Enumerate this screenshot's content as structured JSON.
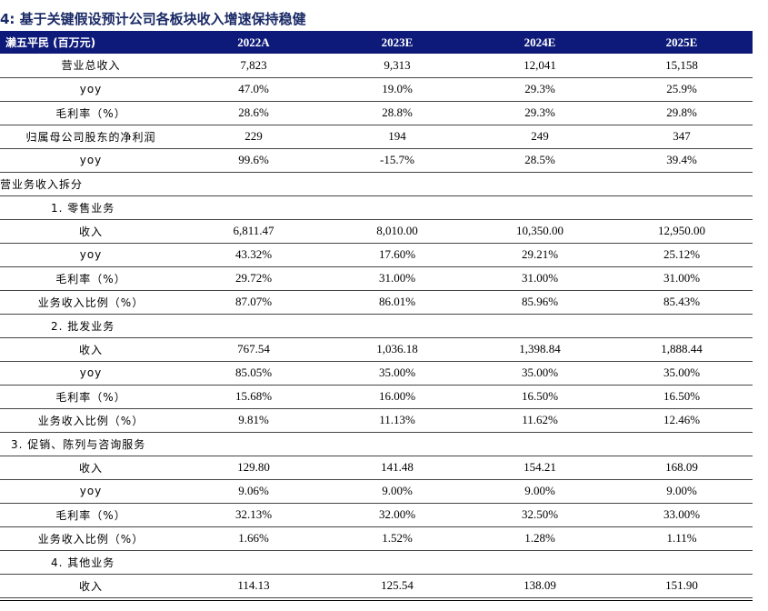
{
  "title": "4: 基于关键假设预计公司各板块收入增速保持稳健",
  "header": {
    "label": "濑五平民 (百万元)",
    "years": [
      "2022A",
      "2023E",
      "2024E",
      "2025E"
    ]
  },
  "rows": [
    {
      "label": "营业总收入",
      "values": [
        "7,823",
        "9,313",
        "12,041",
        "15,158"
      ]
    },
    {
      "label": "yoy",
      "values": [
        "47.0%",
        "19.0%",
        "29.3%",
        "25.9%"
      ]
    },
    {
      "label": "毛利率（%）",
      "values": [
        "28.6%",
        "28.8%",
        "29.3%",
        "29.8%"
      ]
    },
    {
      "label": "归属母公司股东的净利润",
      "values": [
        "229",
        "194",
        "249",
        "347"
      ]
    },
    {
      "label": "yoy",
      "values": [
        "99.6%",
        "-15.7%",
        "28.5%",
        "39.4%"
      ]
    },
    {
      "label": "营业务收入拆分",
      "values": [],
      "section": 0
    },
    {
      "label": "1. 零售业务",
      "values": [],
      "section": 1
    },
    {
      "label": "收入",
      "values": [
        "6,811.47",
        "8,010.00",
        "10,350.00",
        "12,950.00"
      ]
    },
    {
      "label": "yoy",
      "values": [
        "43.32%",
        "17.60%",
        "29.21%",
        "25.12%"
      ]
    },
    {
      "label": "毛利率（%）",
      "values": [
        "29.72%",
        "31.00%",
        "31.00%",
        "31.00%"
      ]
    },
    {
      "label": "业务收入比例（%）",
      "values": [
        "87.07%",
        "86.01%",
        "85.96%",
        "85.43%"
      ]
    },
    {
      "label": "2. 批发业务",
      "values": [],
      "section": 1
    },
    {
      "label": "收入",
      "values": [
        "767.54",
        "1,036.18",
        "1,398.84",
        "1,888.44"
      ]
    },
    {
      "label": "yoy",
      "values": [
        "85.05%",
        "35.00%",
        "35.00%",
        "35.00%"
      ]
    },
    {
      "label": "毛利率（%）",
      "values": [
        "15.68%",
        "16.00%",
        "16.50%",
        "16.50%"
      ]
    },
    {
      "label": "业务收入比例（%）",
      "values": [
        "9.81%",
        "11.13%",
        "11.62%",
        "12.46%"
      ]
    },
    {
      "label": "3. 促销、陈列与咨询服务",
      "values": [],
      "section": 2
    },
    {
      "label": "收入",
      "values": [
        "129.80",
        "141.48",
        "154.21",
        "168.09"
      ]
    },
    {
      "label": "yoy",
      "values": [
        "9.06%",
        "9.00%",
        "9.00%",
        "9.00%"
      ]
    },
    {
      "label": "毛利率（%）",
      "values": [
        "32.13%",
        "32.00%",
        "32.50%",
        "33.00%"
      ]
    },
    {
      "label": "业务收入比例（%）",
      "values": [
        "1.66%",
        "1.52%",
        "1.28%",
        "1.11%"
      ]
    },
    {
      "label": "4. 其他业务",
      "values": [],
      "section": 1
    },
    {
      "label": "收入",
      "values": [
        "114.13",
        "125.54",
        "138.09",
        "151.90"
      ]
    }
  ]
}
